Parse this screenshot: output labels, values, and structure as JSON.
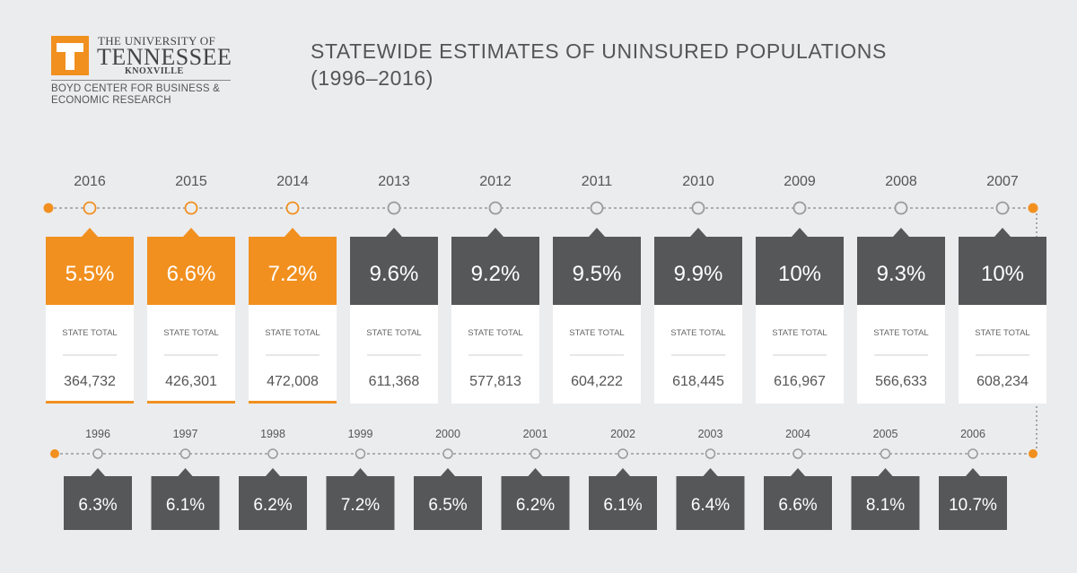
{
  "logo": {
    "line1": "THE UNIVERSITY OF",
    "line2": "TENNESSEE",
    "line3": "KNOXVILLE",
    "sub": "BOYD CENTER FOR BUSINESS & ECONOMIC RESEARCH"
  },
  "title": "STATEWIDE ESTIMATES OF UNINSURED POPULATIONS\n(1996–2016)",
  "colors": {
    "background": "#ebecee",
    "orange": "#f1901f",
    "dark": "#555759",
    "line": "#999999",
    "text": "#555555"
  },
  "chart_data": [
    {
      "type": "table",
      "title": "STATEWIDE ESTIMATES OF UNINSURED POPULATIONS (1996–2016)",
      "categories": [
        "2016",
        "2015",
        "2014",
        "2013",
        "2012",
        "2011",
        "2010",
        "2009",
        "2008",
        "2007"
      ],
      "highlighted": [
        "2016",
        "2015",
        "2014"
      ],
      "series": [
        {
          "values": [
            "5.5%",
            "6.6%",
            "7.2%",
            "9.6%",
            "9.2%",
            "9.5%",
            "9.9%",
            "10%",
            "9.3%",
            "10%"
          ]
        },
        {
          "name": "STATE TOTAL",
          "values": [
            "364,732",
            "426,301",
            "472,008",
            "611,368",
            "577,813",
            "604,222",
            "618,445",
            "616,967",
            "566,633",
            "608,234"
          ]
        }
      ]
    },
    {
      "type": "table",
      "categories": [
        "1996",
        "1997",
        "1998",
        "1999",
        "2000",
        "2001",
        "2002",
        "2003",
        "2004",
        "2005",
        "2006"
      ],
      "series": [
        {
          "values": [
            "6.3%",
            "6.1%",
            "6.2%",
            "7.2%",
            "6.5%",
            "6.2%",
            "6.1%",
            "6.4%",
            "6.6%",
            "8.1%",
            "10.7%"
          ]
        }
      ]
    }
  ]
}
